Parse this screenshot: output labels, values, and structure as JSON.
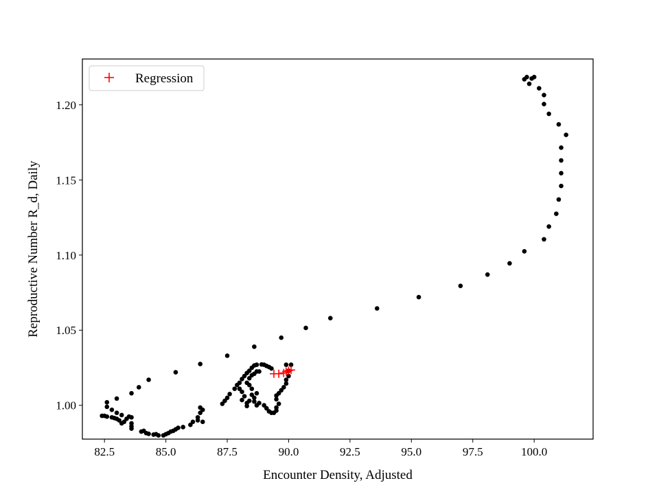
{
  "chart_data": {
    "type": "scatter",
    "xlabel": "Encounter Density, Adjusted",
    "ylabel": "Reproductive Number R_d, Daily",
    "xlim": [
      81.6,
      102.4
    ],
    "ylim": [
      0.9775,
      1.2305
    ],
    "xticks": [
      82.5,
      85.0,
      87.5,
      90.0,
      92.5,
      95.0,
      97.5,
      100.0
    ],
    "yticks": [
      1.0,
      1.05,
      1.1,
      1.15,
      1.2
    ],
    "grid": false,
    "legend": {
      "placement": "upper-left",
      "entries": [
        "Regression"
      ]
    },
    "colors": {
      "data": "#000000",
      "regression": "#ff0000"
    },
    "series": [
      {
        "marker": "dot",
        "color": "#000000",
        "points": [
          [
            99.7,
            1.2185
          ],
          [
            99.9,
            1.2175
          ],
          [
            100.0,
            1.2185
          ],
          [
            99.6,
            1.217
          ],
          [
            99.8,
            1.214
          ],
          [
            100.2,
            1.211
          ],
          [
            100.4,
            1.2065
          ],
          [
            100.4,
            1.2005
          ],
          [
            100.6,
            1.194
          ],
          [
            101.0,
            1.187
          ],
          [
            101.3,
            1.18
          ],
          [
            101.1,
            1.1715
          ],
          [
            101.1,
            1.163
          ],
          [
            101.1,
            1.1545
          ],
          [
            101.1,
            1.146
          ],
          [
            101.0,
            1.137
          ],
          [
            100.9,
            1.1275
          ],
          [
            100.6,
            1.119
          ],
          [
            100.4,
            1.1105
          ],
          [
            99.6,
            1.1025
          ],
          [
            99.0,
            1.0945
          ],
          [
            98.1,
            1.087
          ],
          [
            97.0,
            1.0795
          ],
          [
            95.3,
            1.072
          ],
          [
            93.6,
            1.0645
          ],
          [
            91.7,
            1.058
          ],
          [
            90.7,
            1.0515
          ],
          [
            89.7,
            1.045
          ],
          [
            88.6,
            1.039
          ],
          [
            87.5,
            1.033
          ],
          [
            86.4,
            1.0275
          ],
          [
            85.4,
            1.022
          ],
          [
            84.3,
            1.017
          ],
          [
            83.9,
            1.012
          ],
          [
            83.6,
            1.008
          ],
          [
            83.0,
            1.0045
          ],
          [
            82.6,
            1.002
          ],
          [
            82.6,
            0.999
          ],
          [
            82.8,
            0.997
          ],
          [
            82.4,
            0.993
          ],
          [
            82.5,
            0.993
          ],
          [
            82.6,
            0.9925
          ],
          [
            82.8,
            0.992
          ],
          [
            82.9,
            0.9915
          ],
          [
            83.0,
            0.991
          ],
          [
            83.0,
            0.995
          ],
          [
            83.2,
            0.9935
          ],
          [
            83.1,
            0.99
          ],
          [
            83.3,
            0.989
          ],
          [
            83.2,
            0.988
          ],
          [
            83.4,
            0.991
          ],
          [
            83.5,
            0.9925
          ],
          [
            83.6,
            0.992
          ],
          [
            83.6,
            0.988
          ],
          [
            83.6,
            0.986
          ],
          [
            83.6,
            0.9845
          ],
          [
            84.0,
            0.9825
          ],
          [
            84.1,
            0.983
          ],
          [
            84.2,
            0.9815
          ],
          [
            84.3,
            0.981
          ],
          [
            84.5,
            0.9805
          ],
          [
            84.6,
            0.9808
          ],
          [
            84.7,
            0.98
          ],
          [
            84.9,
            0.98
          ],
          [
            85.0,
            0.9808
          ],
          [
            85.1,
            0.9815
          ],
          [
            85.2,
            0.9825
          ],
          [
            85.3,
            0.983
          ],
          [
            85.4,
            0.984
          ],
          [
            85.5,
            0.985
          ],
          [
            85.7,
            0.9855
          ],
          [
            86.0,
            0.987
          ],
          [
            86.1,
            0.989
          ],
          [
            86.3,
            0.99
          ],
          [
            86.5,
            0.989
          ],
          [
            86.3,
            0.992
          ],
          [
            86.4,
            0.995
          ],
          [
            86.5,
            0.997
          ],
          [
            86.4,
            0.9985
          ],
          [
            87.3,
            1.001
          ],
          [
            87.4,
            1.003
          ],
          [
            87.5,
            1.005
          ],
          [
            87.6,
            1.0075
          ],
          [
            87.8,
            1.011
          ],
          [
            87.9,
            1.0135
          ],
          [
            88.0,
            1.015
          ],
          [
            88.1,
            1.0175
          ],
          [
            88.2,
            1.0195
          ],
          [
            88.3,
            1.0215
          ],
          [
            88.4,
            1.023
          ],
          [
            88.5,
            1.025
          ],
          [
            88.6,
            1.0265
          ],
          [
            88.7,
            1.027
          ],
          [
            88.9,
            1.0272
          ],
          [
            89.0,
            1.027
          ],
          [
            89.1,
            1.0262
          ],
          [
            89.2,
            1.0255
          ],
          [
            89.3,
            1.0245
          ],
          [
            88.0,
            1.011
          ],
          [
            88.1,
            1.009
          ],
          [
            88.2,
            1.006
          ],
          [
            88.1,
            1.0035
          ],
          [
            88.3,
            1.0015
          ],
          [
            88.3,
            0.9995
          ],
          [
            88.4,
            1.003
          ],
          [
            88.6,
            1.005
          ],
          [
            88.7,
            1.008
          ],
          [
            88.5,
            1.011
          ],
          [
            88.3,
            1.015
          ],
          [
            88.4,
            1.018
          ],
          [
            88.5,
            1.02
          ],
          [
            88.6,
            1.021
          ],
          [
            88.7,
            1.0225
          ],
          [
            88.8,
            1.0225
          ],
          [
            88.4,
            1.0135
          ],
          [
            88.5,
            1.007
          ],
          [
            88.6,
            1.0025
          ],
          [
            88.7,
            1.0
          ],
          [
            88.8,
            1.0015
          ],
          [
            89.0,
            1.0
          ],
          [
            89.1,
            0.998
          ],
          [
            89.2,
            0.996
          ],
          [
            89.3,
            0.995
          ],
          [
            89.4,
            0.995
          ],
          [
            89.5,
            0.9965
          ],
          [
            89.5,
            0.9985
          ],
          [
            89.6,
            1.001
          ],
          [
            89.5,
            1.004
          ],
          [
            89.5,
            1.0065
          ],
          [
            89.6,
            1.008
          ],
          [
            89.7,
            1.01
          ],
          [
            89.8,
            1.012
          ],
          [
            89.9,
            1.0145
          ],
          [
            89.9,
            1.017
          ],
          [
            90.0,
            1.0195
          ],
          [
            90.0,
            1.023
          ],
          [
            89.9,
            1.027
          ],
          [
            90.1,
            1.027
          ]
        ]
      },
      {
        "name": "Regression",
        "marker": "plus",
        "color": "#ff0000",
        "points": [
          [
            89.4,
            1.021
          ],
          [
            89.6,
            1.021
          ],
          [
            89.8,
            1.0215
          ],
          [
            89.9,
            1.0225
          ],
          [
            90.0,
            1.023
          ],
          [
            90.1,
            1.0235
          ]
        ]
      }
    ]
  }
}
